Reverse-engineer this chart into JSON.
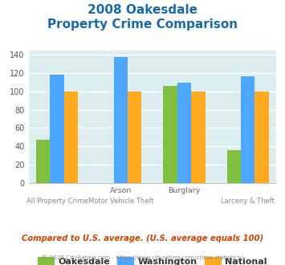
{
  "title_line1": "2008 Oakesdale",
  "title_line2": "Property Crime Comparison",
  "title_color": "#1a6aaa",
  "oakesdale": [
    47,
    0,
    106,
    36
  ],
  "washington": [
    118,
    138,
    110,
    117
  ],
  "national": [
    100,
    100,
    100,
    100
  ],
  "bar_colors": {
    "oakesdale": "#80c040",
    "washington": "#4da6ff",
    "national": "#ffaa20"
  },
  "ylim": [
    0,
    145
  ],
  "yticks": [
    0,
    20,
    40,
    60,
    80,
    100,
    120,
    140
  ],
  "plot_bg": "#ddeef0",
  "label_top": [
    "",
    "Arson",
    "Burglary",
    ""
  ],
  "label_bot": [
    "All Property Crime",
    "Motor Vehicle Theft",
    "",
    "Larceny & Theft"
  ],
  "footer_text": "Compared to U.S. average. (U.S. average equals 100)",
  "footer_color": "#cc4400",
  "copyright_text": "© 2025 CityRating.com - https://www.cityrating.com/crime-statistics/",
  "copyright_color": "#888888",
  "legend_labels": [
    "Oakesdale",
    "Washington",
    "National"
  ]
}
